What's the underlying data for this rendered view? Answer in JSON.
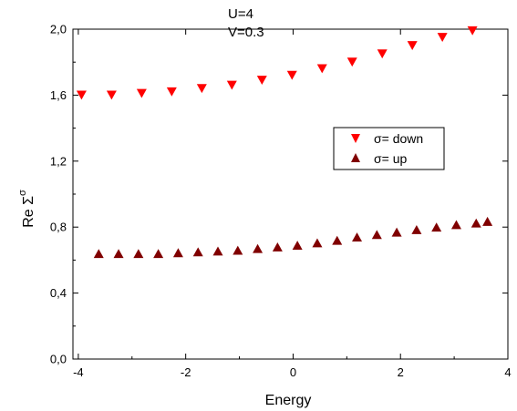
{
  "chart_data": {
    "type": "scatter",
    "xlabel": "Energy",
    "ylabel": "Re Σ",
    "ylabel_superscript": "σ",
    "xlim": [
      -4.1,
      4.0
    ],
    "ylim": [
      0.0,
      2.0
    ],
    "xticks": [
      -4,
      -2,
      0,
      2,
      4
    ],
    "xtick_labels": [
      "-4",
      "-2",
      "0",
      "2",
      "4"
    ],
    "yticks": [
      0.0,
      0.4,
      0.8,
      1.2,
      1.6,
      2.0
    ],
    "ytick_labels": [
      "0,0",
      "0,4",
      "0,8",
      "1,2",
      "1,6",
      "2,0"
    ],
    "annotations": [
      "U=4",
      "V=0.3"
    ],
    "legend_position": "center-right",
    "series": [
      {
        "name": "σ= down",
        "marker": "triangle-down",
        "color": "#ff0000",
        "x": [
          -3.94,
          -3.38,
          -2.82,
          -2.26,
          -1.7,
          -1.14,
          -0.58,
          -0.02,
          0.54,
          1.1,
          1.66,
          2.22,
          2.78,
          3.34
        ],
        "y": [
          1.6,
          1.6,
          1.61,
          1.62,
          1.64,
          1.66,
          1.69,
          1.72,
          1.76,
          1.8,
          1.85,
          1.9,
          1.95,
          1.99
        ]
      },
      {
        "name": "σ= up",
        "marker": "triangle-up",
        "color": "#800000",
        "x": [
          -3.62,
          -3.25,
          -2.88,
          -2.51,
          -2.14,
          -1.77,
          -1.4,
          -1.03,
          -0.66,
          -0.29,
          0.08,
          0.45,
          0.82,
          1.19,
          1.56,
          1.93,
          2.3,
          2.67,
          3.04,
          3.41,
          3.62
        ],
        "y": [
          0.64,
          0.64,
          0.64,
          0.64,
          0.645,
          0.65,
          0.655,
          0.66,
          0.67,
          0.68,
          0.69,
          0.705,
          0.72,
          0.74,
          0.755,
          0.77,
          0.785,
          0.8,
          0.815,
          0.825,
          0.835
        ]
      }
    ]
  }
}
